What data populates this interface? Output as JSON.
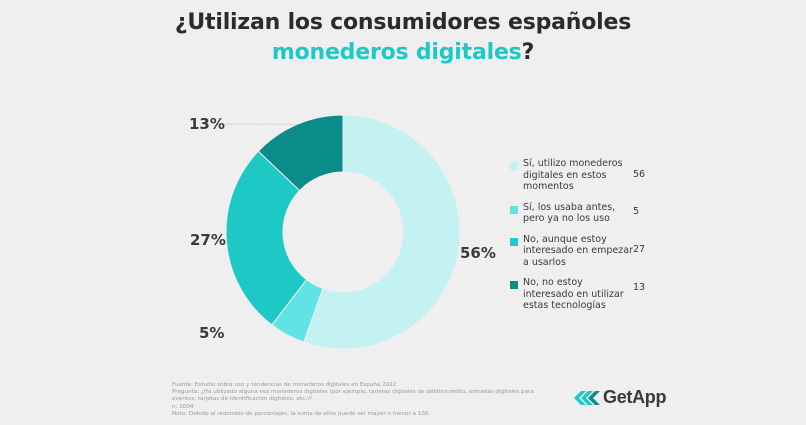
{
  "title": {
    "line1": "¿Utilizan los consumidores españoles",
    "highlight": "monederos digitales",
    "suffix": "?"
  },
  "chart_data": {
    "type": "pie",
    "donut": true,
    "categories": [
      "Sí, utilizo monederos digitales en estos momentos",
      "Sí, los usaba antes, pero ya no los uso",
      "No, aunque estoy interesado en empezar a usarlos",
      "No, no estoy interesado en utilizar estas tecnologías"
    ],
    "values": [
      56,
      5,
      27,
      13
    ],
    "value_labels": [
      "56%",
      "5%",
      "27%",
      "13%"
    ],
    "colors": [
      "#c4f2f2",
      "#5fe3e3",
      "#1ec9c5",
      "#0b8c8a"
    ],
    "legend_position": "right"
  },
  "footnote": {
    "lines": [
      "Fuente: Estudio sobre uso y tendencias de monederos digitales en España 2022.",
      "Pregunta: ¿Ha utilizado alguna vez monederos digitales (por ejemplo, tarjetas digitales de débito/crédito, entradas digitales para",
      "eventos, tarjetas de identificación digitales, etc.)?",
      "n: 1004",
      "Nota: Debido al redondeo de porcentajes, la suma de ellos puede ser mayor o menor a 100."
    ]
  },
  "brand": {
    "name": "GetApp",
    "colors": [
      "#1ec9c5",
      "#0b8c8a"
    ]
  }
}
